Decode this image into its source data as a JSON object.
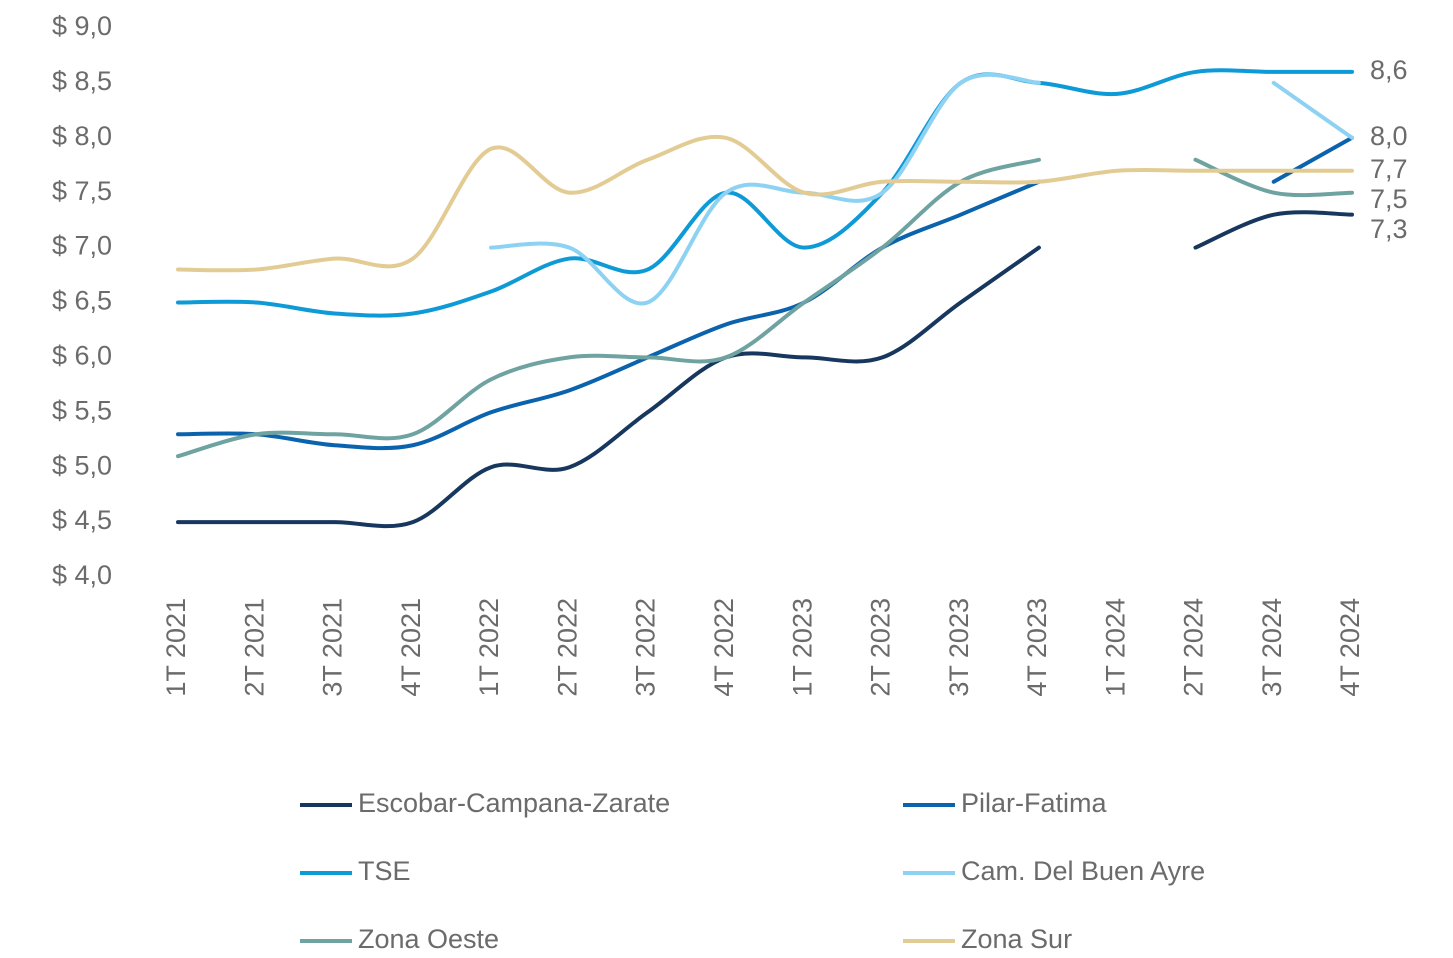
{
  "chart_data": {
    "type": "line",
    "categories": [
      "1T 2021",
      "2T 2021",
      "3T 2021",
      "4T 2021",
      "1T 2022",
      "2T 2022",
      "3T 2022",
      "4T 2022",
      "1T 2023",
      "2T 2023",
      "3T 2023",
      "4T 2023",
      "1T 2024",
      "2T 2024",
      "3T 2024",
      "4T 2024"
    ],
    "ylim": [
      4.0,
      9.0
    ],
    "yticks": [
      {
        "value": 4.0,
        "label": "$ 4,0"
      },
      {
        "value": 4.5,
        "label": "$ 4,5"
      },
      {
        "value": 5.0,
        "label": "$ 5,0"
      },
      {
        "value": 5.5,
        "label": "$ 5,5"
      },
      {
        "value": 6.0,
        "label": "$ 6,0"
      },
      {
        "value": 6.5,
        "label": "$ 6,5"
      },
      {
        "value": 7.0,
        "label": "$ 7,0"
      },
      {
        "value": 7.5,
        "label": "$ 7,5"
      },
      {
        "value": 8.0,
        "label": "$ 8,0"
      },
      {
        "value": 8.5,
        "label": "$ 8,5"
      },
      {
        "value": 9.0,
        "label": "$ 9,0"
      }
    ],
    "grid": false,
    "legend": "bottom",
    "series": [
      {
        "name": "Escobar-Campana-Zarate",
        "color": "#17375e",
        "values": [
          4.5,
          4.5,
          4.5,
          4.5,
          5.0,
          5.0,
          5.5,
          6.0,
          6.0,
          6.0,
          6.5,
          7.0,
          null,
          7.0,
          7.3,
          7.3
        ],
        "end_label": "7,3"
      },
      {
        "name": "Pilar-Fatima",
        "color": "#0b62ad",
        "values": [
          5.3,
          5.3,
          5.2,
          5.2,
          5.5,
          5.7,
          6.0,
          6.3,
          6.5,
          7.0,
          7.3,
          7.6,
          null,
          null,
          7.6,
          8.0
        ],
        "end_label": "8,0"
      },
      {
        "name": "TSE",
        "color": "#0e9ad6",
        "values": [
          6.5,
          6.5,
          6.4,
          6.4,
          6.6,
          6.9,
          6.8,
          7.5,
          7.0,
          7.5,
          8.5,
          8.5,
          8.4,
          8.6,
          8.6,
          8.6
        ],
        "end_label": "8,6"
      },
      {
        "name": "Cam. Del Buen Ayre",
        "color": "#8ed2f3",
        "values": [
          null,
          null,
          null,
          null,
          7.0,
          7.0,
          6.5,
          7.5,
          7.5,
          7.5,
          8.5,
          8.5,
          null,
          null,
          8.5,
          8.0
        ]
      },
      {
        "name": "Zona Oeste",
        "color": "#6fa3a1",
        "values": [
          5.1,
          5.3,
          5.3,
          5.3,
          5.8,
          6.0,
          6.0,
          6.0,
          6.5,
          7.0,
          7.6,
          7.8,
          null,
          7.8,
          7.5,
          7.5
        ],
        "end_label": "7,5"
      },
      {
        "name": "Zona Sur",
        "color": "#e3cb94",
        "values": [
          6.8,
          6.8,
          6.9,
          6.9,
          7.9,
          7.5,
          7.8,
          8.0,
          7.5,
          7.6,
          7.6,
          7.6,
          7.7,
          7.7,
          7.7,
          7.7
        ],
        "end_label": "7,7"
      }
    ]
  }
}
